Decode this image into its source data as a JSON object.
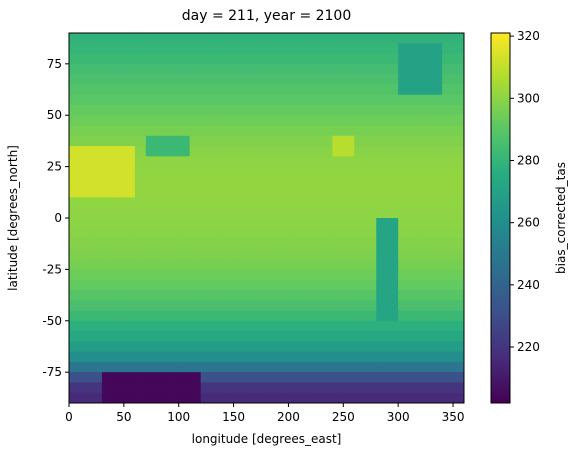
{
  "chart_data": {
    "type": "heatmap",
    "title": "day = 211, year = 2100",
    "xlabel": "longitude [degrees_east]",
    "ylabel": "latitude [degrees_north]",
    "xlim": [
      0,
      360
    ],
    "ylim": [
      -90,
      90
    ],
    "x_ticks": [
      0,
      50,
      100,
      150,
      200,
      250,
      300,
      350
    ],
    "y_ticks": [
      -75,
      -50,
      -25,
      0,
      25,
      50,
      75
    ],
    "colorbar": {
      "label": "bias_corrected_tas",
      "colormap": "viridis",
      "vmin": 202,
      "vmax": 321,
      "ticks": [
        220,
        240,
        260,
        280,
        300,
        320
      ]
    },
    "grid": false,
    "zonal_profile": {
      "latitude": [
        90,
        80,
        70,
        60,
        50,
        40,
        30,
        20,
        10,
        0,
        -10,
        -20,
        -30,
        -40,
        -50,
        -60,
        -70,
        -80,
        -90
      ],
      "value": [
        278,
        281,
        285,
        289,
        293,
        297,
        300,
        301,
        301,
        300,
        299,
        297,
        293,
        288,
        280,
        271,
        257,
        222,
        214
      ]
    },
    "regions": [
      {
        "name": "sahara-arabia",
        "lon": [
          0,
          60
        ],
        "lat": [
          12,
          35
        ],
        "value": 313
      },
      {
        "name": "tibet",
        "lon": [
          75,
          105
        ],
        "lat": [
          28,
          40
        ],
        "value": 282
      },
      {
        "name": "greenland",
        "lon": [
          300,
          340
        ],
        "lat": [
          60,
          83
        ],
        "value": 270
      },
      {
        "name": "southwest-usa",
        "lon": [
          245,
          262
        ],
        "lat": [
          28,
          40
        ],
        "value": 308
      },
      {
        "name": "andes",
        "lon": [
          285,
          295
        ],
        "lat": [
          -50,
          0
        ],
        "value": 272
      },
      {
        "name": "antarctic-plateau",
        "lon": [
          30,
          120
        ],
        "lat": [
          -90,
          -75
        ],
        "value": 204
      }
    ]
  }
}
